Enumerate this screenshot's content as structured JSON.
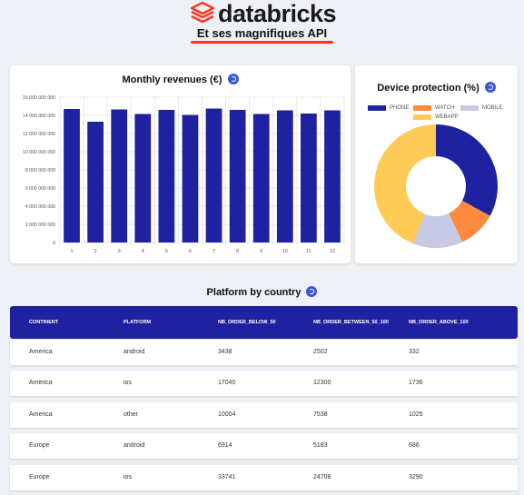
{
  "brand": {
    "logo_text": "databricks",
    "tagline": "Et ses magnifiques API",
    "accent_color": "#ff3621"
  },
  "revenue_card": {
    "title": "Monthly revenues (€)",
    "refresh_icon": "refresh-icon"
  },
  "device_card": {
    "title": "Device protection (%)",
    "refresh_icon": "refresh-icon"
  },
  "table_section": {
    "title": "Platform by country",
    "refresh_icon": "refresh-icon"
  },
  "chart_data": [
    {
      "type": "bar",
      "title": "Monthly revenues (€)",
      "categories": [
        "1",
        "2",
        "3",
        "4",
        "5",
        "6",
        "7",
        "8",
        "9",
        "10",
        "11",
        "12"
      ],
      "values": [
        14700000000,
        13300000000,
        14650000000,
        14150000000,
        14600000000,
        14050000000,
        14750000000,
        14600000000,
        14150000000,
        14550000000,
        14200000000,
        14550000000
      ],
      "ylim": [
        0,
        16000000000
      ],
      "yticks": [
        "0",
        "2 000 000 000",
        "4 000 000 000",
        "6 000 000 000",
        "8 000 000 000",
        "10 000 000 000",
        "12 000 000 000",
        "14 000 000 000",
        "16 000 000 000"
      ],
      "color": "#1e22a0",
      "grid": true
    },
    {
      "type": "pie",
      "title": "Device protection (%)",
      "labels": [
        "PHONE",
        "WATCH",
        "MOBILE",
        "WEBAPP"
      ],
      "values": [
        33,
        10,
        13,
        44
      ],
      "colors": [
        "#1e22a0",
        "#ff8a3d",
        "#c7c9e6",
        "#ffcb57"
      ],
      "legend": "top"
    }
  ],
  "table": {
    "columns": [
      "CONTINENT",
      "PLATFORM",
      "NB_ORDER_BELOW_50",
      "NB_ORDER_BETWEEN_50_100",
      "NB_ORDER_ABOVE_100"
    ],
    "rows": [
      [
        "America",
        "android",
        "3438",
        "2502",
        "332"
      ],
      [
        "America",
        "ios",
        "17040",
        "12300",
        "1736"
      ],
      [
        "America",
        "other",
        "10004",
        "7538",
        "1025"
      ],
      [
        "Europe",
        "android",
        "6914",
        "5183",
        "686"
      ],
      [
        "Europe",
        "ios",
        "33741",
        "24708",
        "3290"
      ]
    ]
  }
}
